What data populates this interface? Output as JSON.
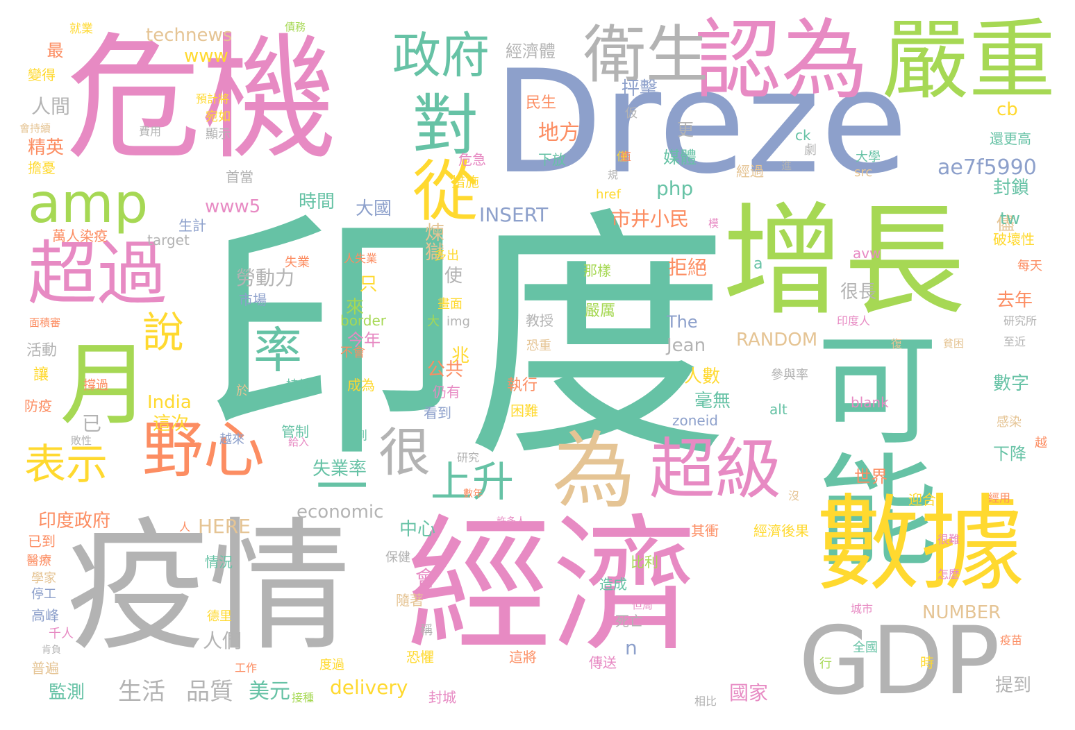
{
  "palette": {
    "teal": "#66c2a5",
    "orange": "#fc8d62",
    "blue": "#8da0cb",
    "pink": "#e78ac3",
    "green": "#a6d854",
    "yellow": "#ffd92f",
    "tan": "#e5c494",
    "gray": "#b3b3b3"
  },
  "words": [
    {
      "text": "印度",
      "color": "teal"
    },
    {
      "text": "危機",
      "color": "pink"
    },
    {
      "text": "Dreze",
      "color": "blue"
    },
    {
      "text": "疫情",
      "color": "gray"
    },
    {
      "text": "經濟",
      "color": "pink"
    },
    {
      "text": "增長",
      "color": "green"
    },
    {
      "text": "可能",
      "color": "teal"
    },
    {
      "text": "數據",
      "color": "yellow"
    },
    {
      "text": "GDP",
      "color": "gray"
    },
    {
      "text": "嚴重",
      "color": "green"
    },
    {
      "text": "認為",
      "color": "pink"
    },
    {
      "text": "衛生",
      "color": "gray"
    },
    {
      "text": "超過",
      "color": "pink"
    },
    {
      "text": "月",
      "color": "green"
    },
    {
      "text": "amp",
      "color": "green"
    },
    {
      "text": "政府",
      "color": "teal"
    },
    {
      "text": "對",
      "color": "teal"
    },
    {
      "text": "從",
      "color": "yellow"
    },
    {
      "text": "野心",
      "color": "orange"
    },
    {
      "text": "為",
      "color": "tan"
    },
    {
      "text": "超級",
      "color": "pink"
    },
    {
      "text": "上升",
      "color": "teal"
    },
    {
      "text": "表示",
      "color": "yellow"
    },
    {
      "text": "很",
      "color": "gray"
    },
    {
      "text": "一",
      "color": "teal"
    },
    {
      "text": "說",
      "color": "yellow"
    },
    {
      "text": "率",
      "color": "teal"
    },
    {
      "text": "technews",
      "color": "tan"
    },
    {
      "text": "www",
      "color": "yellow"
    },
    {
      "text": "經濟體",
      "color": "gray"
    },
    {
      "text": "人間",
      "color": "gray"
    },
    {
      "text": "精英",
      "color": "orange"
    },
    {
      "text": "最",
      "color": "orange"
    },
    {
      "text": "就業",
      "color": "yellow"
    },
    {
      "text": "債務",
      "color": "green"
    },
    {
      "text": "變得",
      "color": "yellow"
    },
    {
      "text": "會持續",
      "color": "tan"
    },
    {
      "text": "擔憂",
      "color": "yellow"
    },
    {
      "text": "預計將",
      "color": "yellow"
    },
    {
      "text": "宛如",
      "color": "yellow"
    },
    {
      "text": "顯示",
      "color": "gray"
    },
    {
      "text": "費用",
      "color": "gray"
    },
    {
      "text": "首當",
      "color": "gray"
    },
    {
      "text": "www5",
      "color": "pink"
    },
    {
      "text": "時間",
      "color": "teal"
    },
    {
      "text": "大國",
      "color": "blue"
    },
    {
      "text": "INSERT",
      "color": "blue"
    },
    {
      "text": "php",
      "color": "teal"
    },
    {
      "text": "ae7f5990",
      "color": "blue"
    },
    {
      "text": "封鎖",
      "color": "teal"
    },
    {
      "text": "cb",
      "color": "yellow"
    },
    {
      "text": "還更高",
      "color": "teal"
    },
    {
      "text": "抨擊",
      "color": "blue"
    },
    {
      "text": "地方",
      "color": "orange"
    },
    {
      "text": "民生",
      "color": "orange"
    },
    {
      "text": "更",
      "color": "gray"
    },
    {
      "text": "媒體",
      "color": "teal"
    },
    {
      "text": "危急",
      "color": "pink"
    },
    {
      "text": "措施",
      "color": "yellow"
    },
    {
      "text": "下放",
      "color": "teal"
    },
    {
      "text": "生計",
      "color": "blue"
    },
    {
      "text": "萬人染疫",
      "color": "orange"
    },
    {
      "text": "target",
      "color": "gray"
    },
    {
      "text": "市井小民",
      "color": "orange"
    },
    {
      "text": "儘",
      "color": "tan"
    },
    {
      "text": "tw",
      "color": "teal"
    },
    {
      "text": "破壞性",
      "color": "yellow"
    },
    {
      "text": "煉獄",
      "color": "tan"
    },
    {
      "text": "勞動力",
      "color": "gray"
    },
    {
      "text": "市場",
      "color": "blue"
    },
    {
      "text": "只",
      "color": "yellow"
    },
    {
      "text": "來",
      "color": "green"
    },
    {
      "text": "使",
      "color": "gray"
    },
    {
      "text": "拒絕",
      "color": "orange"
    },
    {
      "text": "很長",
      "color": "gray"
    },
    {
      "text": "去年",
      "color": "orange"
    },
    {
      "text": "border",
      "color": "green"
    },
    {
      "text": "大",
      "color": "green"
    },
    {
      "text": "img",
      "color": "gray"
    },
    {
      "text": "教授",
      "color": "gray"
    },
    {
      "text": "嚴厲",
      "color": "green"
    },
    {
      "text": "The",
      "color": "blue"
    },
    {
      "text": "Jean",
      "color": "gray"
    },
    {
      "text": "RANDOM",
      "color": "tan"
    },
    {
      "text": "今年",
      "color": "pink"
    },
    {
      "text": "不會",
      "color": "orange"
    },
    {
      "text": "兆",
      "color": "yellow"
    },
    {
      "text": "公共",
      "color": "orange"
    },
    {
      "text": "人數",
      "color": "yellow"
    },
    {
      "text": "毫無",
      "color": "teal"
    },
    {
      "text": "India",
      "color": "yellow"
    },
    {
      "text": "這次",
      "color": "yellow"
    },
    {
      "text": "活動",
      "color": "gray"
    },
    {
      "text": "讓",
      "color": "yellow"
    },
    {
      "text": "防疫",
      "color": "orange"
    },
    {
      "text": "數字",
      "color": "teal"
    },
    {
      "text": "blank",
      "color": "pink"
    },
    {
      "text": "zoneid",
      "color": "blue"
    },
    {
      "text": "alt",
      "color": "teal"
    },
    {
      "text": "感染",
      "color": "tan"
    },
    {
      "text": "下降",
      "color": "teal"
    },
    {
      "text": "世界",
      "color": "orange"
    },
    {
      "text": "失業率",
      "color": "teal"
    },
    {
      "text": "管制",
      "color": "teal"
    },
    {
      "text": "印度政府",
      "color": "orange"
    },
    {
      "text": "economic",
      "color": "gray"
    },
    {
      "text": "中心",
      "color": "teal"
    },
    {
      "text": "HERE",
      "color": "tan"
    },
    {
      "text": "已到",
      "color": "orange"
    },
    {
      "text": "醫療",
      "color": "orange"
    },
    {
      "text": "學家",
      "color": "tan"
    },
    {
      "text": "停工",
      "color": "blue"
    },
    {
      "text": "高峰",
      "color": "blue"
    },
    {
      "text": "千人",
      "color": "pink"
    },
    {
      "text": "肯負",
      "color": "gray"
    },
    {
      "text": "普遍",
      "color": "tan"
    },
    {
      "text": "監測",
      "color": "teal"
    },
    {
      "text": "生活",
      "color": "gray"
    },
    {
      "text": "品質",
      "color": "gray"
    },
    {
      "text": "美元",
      "color": "teal"
    },
    {
      "text": "delivery",
      "color": "yellow"
    },
    {
      "text": "國家",
      "color": "pink"
    },
    {
      "text": "NUMBER",
      "color": "tan"
    },
    {
      "text": "人們",
      "color": "gray"
    },
    {
      "text": "n",
      "color": "blue"
    },
    {
      "text": "傳送",
      "color": "pink"
    },
    {
      "text": "死亡",
      "color": "gray"
    },
    {
      "text": "造成",
      "color": "teal"
    },
    {
      "text": "比利",
      "color": "green"
    },
    {
      "text": "會",
      "color": "pink"
    },
    {
      "text": "隨著",
      "color": "tan"
    },
    {
      "text": "提到",
      "color": "gray"
    },
    {
      "text": "時",
      "color": "yellow"
    },
    {
      "text": "封城",
      "color": "pink"
    },
    {
      "text": "經濟後果",
      "color": "yellow"
    },
    {
      "text": "其衝",
      "color": "orange"
    },
    {
      "text": "迎合",
      "color": "yellow"
    },
    {
      "text": "仍有",
      "color": "pink"
    },
    {
      "text": "看到",
      "color": "blue"
    },
    {
      "text": "困難",
      "color": "yellow"
    },
    {
      "text": "執行",
      "color": "orange"
    },
    {
      "text": "成為",
      "color": "yellow"
    },
    {
      "text": "已",
      "color": "gray"
    },
    {
      "text": "那樣",
      "color": "green"
    },
    {
      "text": "a",
      "color": "teal"
    },
    {
      "text": "href",
      "color": "yellow"
    },
    {
      "text": "src",
      "color": "tan"
    },
    {
      "text": "大學",
      "color": "teal"
    },
    {
      "text": "avw",
      "color": "pink"
    },
    {
      "text": "每天",
      "color": "orange"
    },
    {
      "text": "研究所",
      "color": "gray"
    },
    {
      "text": "至近",
      "color": "gray"
    },
    {
      "text": "參與率",
      "color": "gray"
    },
    {
      "text": "經過",
      "color": "tan"
    },
    {
      "text": "ck",
      "color": "teal"
    },
    {
      "text": "劇",
      "color": "gray"
    },
    {
      "text": "印度人",
      "color": "pink"
    },
    {
      "text": "越來",
      "color": "blue"
    },
    {
      "text": "找到",
      "color": "teal"
    },
    {
      "text": "研究",
      "color": "gray"
    },
    {
      "text": "數年",
      "color": "orange"
    },
    {
      "text": "許多人",
      "color": "pink"
    },
    {
      "text": "保健",
      "color": "gray"
    },
    {
      "text": "情況",
      "color": "teal"
    },
    {
      "text": "德里",
      "color": "yellow"
    },
    {
      "text": "工作",
      "color": "orange"
    },
    {
      "text": "接種",
      "color": "green"
    },
    {
      "text": "度過",
      "color": "yellow"
    },
    {
      "text": "恐懼",
      "color": "yellow"
    },
    {
      "text": "這將",
      "color": "orange"
    },
    {
      "text": "全國",
      "color": "teal"
    },
    {
      "text": "相比",
      "color": "gray"
    },
    {
      "text": "城市",
      "color": "pink"
    },
    {
      "text": "但周",
      "color": "pink"
    },
    {
      "text": "很難",
      "color": "pink"
    },
    {
      "text": "怎麼",
      "color": "pink"
    },
    {
      "text": "疫苗",
      "color": "orange"
    },
    {
      "text": "沒",
      "color": "tan"
    },
    {
      "text": "經用",
      "color": "orange"
    },
    {
      "text": "失業",
      "color": "orange"
    },
    {
      "text": "人失業",
      "color": "orange"
    },
    {
      "text": "多出",
      "color": "yellow"
    },
    {
      "text": "畫面",
      "color": "yellow"
    },
    {
      "text": "恐重",
      "color": "tan"
    },
    {
      "text": "撐過",
      "color": "orange"
    },
    {
      "text": "持續",
      "color": "teal"
    },
    {
      "text": "於",
      "color": "tan"
    },
    {
      "text": "敗性",
      "color": "gray"
    },
    {
      "text": "人",
      "color": "orange"
    },
    {
      "text": "面積審",
      "color": "orange"
    },
    {
      "text": "復",
      "color": "tan"
    },
    {
      "text": "貧困",
      "color": "tan"
    },
    {
      "text": "越",
      "color": "orange"
    },
    {
      "text": "僅",
      "color": "yellow"
    },
    {
      "text": "給入",
      "color": "pink"
    },
    {
      "text": "稱",
      "color": "gray"
    },
    {
      "text": "行",
      "color": "green"
    },
    {
      "text": "值",
      "color": "orange"
    },
    {
      "text": "規",
      "color": "gray"
    },
    {
      "text": "進",
      "color": "gray"
    },
    {
      "text": "模",
      "color": "pink"
    },
    {
      "text": "仮",
      "color": "gray"
    }
  ]
}
